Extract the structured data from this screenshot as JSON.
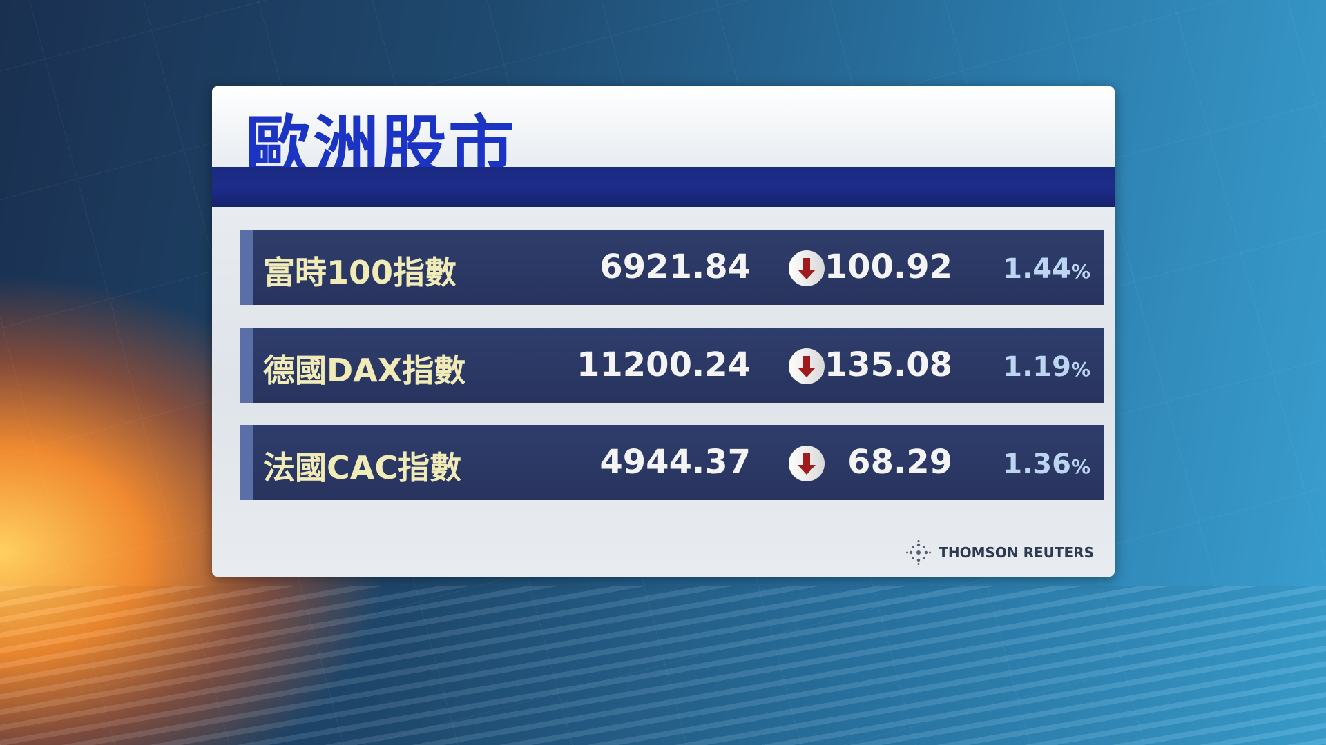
{
  "title": "歐洲股市",
  "rows": [
    {
      "name": "富時100指數",
      "value": "6921.84",
      "direction": "down",
      "change": "100.92",
      "percent": "1.44",
      "percent_sign": "%"
    },
    {
      "name": "德國DAX指數",
      "value": "11200.24",
      "direction": "down",
      "change": "135.08",
      "percent": "1.19",
      "percent_sign": "%"
    },
    {
      "name": "法國CAC指數",
      "value": "4944.37",
      "direction": "down",
      "change": "68.29",
      "percent": "1.36",
      "percent_sign": "%"
    }
  ],
  "source": "THOMSON REUTERS",
  "colors": {
    "title": "#1b34c4",
    "band": "#1d2c8a",
    "row": "#2c3864",
    "down_arrow": "#a01c1c",
    "label": "#f1ebb8",
    "percent": "#bcd6f2"
  }
}
